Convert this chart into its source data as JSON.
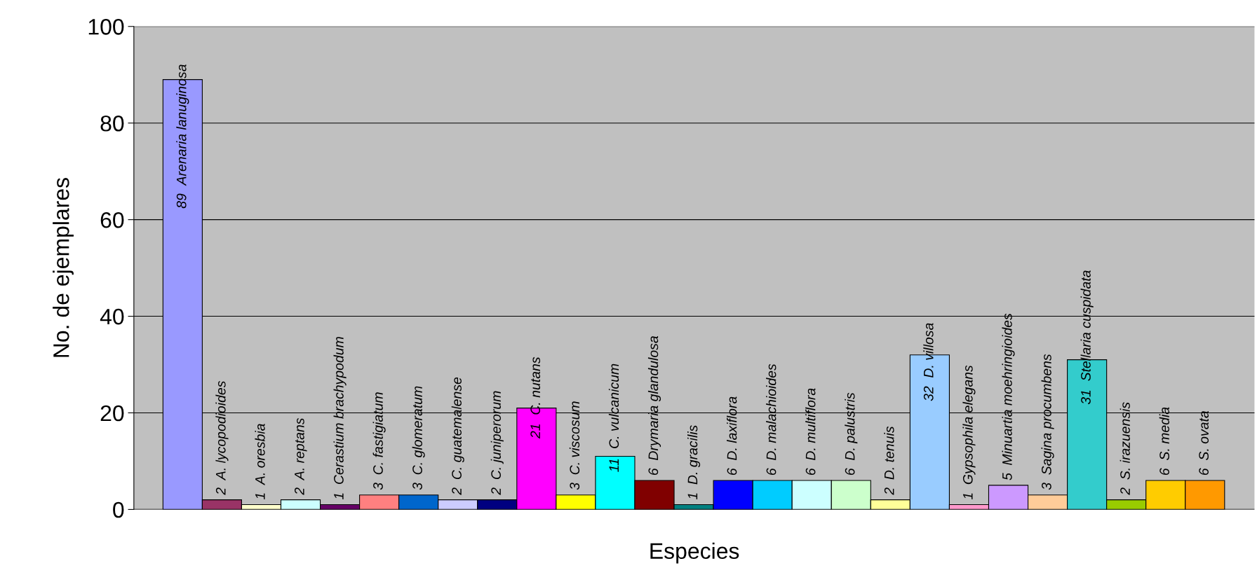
{
  "chart_data": {
    "type": "bar",
    "xlabel": "Especies",
    "ylabel": "No. de ejemplares",
    "categories": [
      "Arenaria lanuginosa",
      "A. lycopodioides",
      "A. oresbia",
      "A. reptans",
      "Cerastium brachypodum",
      "C. fastigiatum",
      "C. glomeratum",
      "C. guatemalense",
      "C. juniperorum",
      "C. nutans",
      "C. viscosum",
      "C. vulcanicum",
      "Drymaria glandulosa",
      "D. gracilis",
      "D. laxiflora",
      "D. malachioides",
      "D. multiflora",
      "D. palustris",
      "D. tenuis",
      "D. villosa",
      "Gypsophila elegans",
      "Minuartia moehringioides",
      "Sagina procumbens",
      "Stellaria cuspidata",
      "S. irazuensis",
      "S. media",
      "S. ovata"
    ],
    "values": [
      89,
      2,
      1,
      2,
      1,
      3,
      3,
      2,
      2,
      21,
      3,
      11,
      6,
      1,
      6,
      6,
      6,
      6,
      2,
      32,
      1,
      5,
      3,
      31,
      2,
      6,
      6
    ],
    "colors": [
      "#9999ff",
      "#993366",
      "#ffffcc",
      "#ccffff",
      "#660066",
      "#ff8080",
      "#0066cc",
      "#ccccff",
      "#000080",
      "#ff00ff",
      "#ffff00",
      "#00ffff",
      "#800000",
      "#008080",
      "#0000ff",
      "#00ccff",
      "#ccffff",
      "#ccffcc",
      "#ffff99",
      "#99ccff",
      "#ff99cc",
      "#cc99ff",
      "#ffcc99",
      "#33cccc",
      "#99cc00",
      "#ffcc00",
      "#ff9900"
    ],
    "ylim": [
      0,
      100
    ],
    "yticks": [
      0,
      20,
      40,
      60,
      80,
      100
    ],
    "grid": "y",
    "data_labels": true,
    "legend": false
  }
}
